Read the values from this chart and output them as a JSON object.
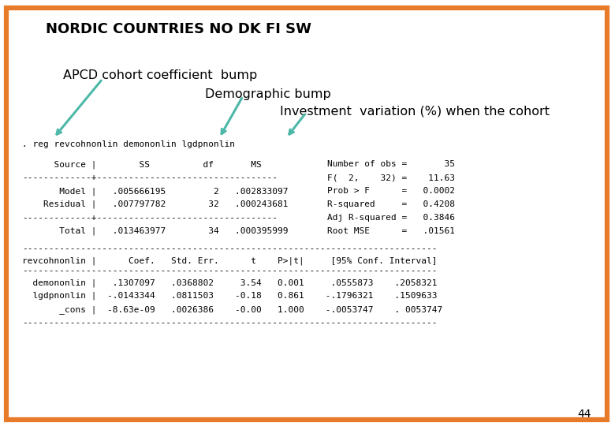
{
  "title": "NORDIC COUNTRIES NO DK FI SW",
  "border_color": "#E87B2A",
  "bg_color": "#FFFFFF",
  "teal_color": "#4DB8A8",
  "annotation1": "APCD cohort coefficient  bump",
  "annotation2": "Demographic bump",
  "annotation3": "Investment  variation (%) when the cohort",
  "cmd_line": ". reg revcohnonlin demononlin lgdpnonlin",
  "stata_output": [
    "      Source |        SS          df       MS",
    "-------------+----------------------------------",
    "       Model |   .005666195         2   .002833097",
    "    Residual |   .007797782        32   .000243681",
    "-------------+----------------------------------",
    "       Total |   .013463977        34   .000395999"
  ],
  "right_stats": [
    "Number of obs =       35",
    "F(  2,    32) =    11.63",
    "Prob > F      =   0.0002",
    "R-squared     =   0.4208",
    "Adj R-squared =   0.3846",
    "Root MSE      =   .01561"
  ],
  "separator_line": "------------------------------------------------------------------------------",
  "header_line": "revcohnonlin |      Coef.   Std. Err.      t    P>|t|     [95% Conf. Interval]",
  "coef_rows": [
    "  demononlin |   .1307097   .0368802     3.54   0.001     .0555873    .2058321",
    "  lgdpnonlin |  -.0143344   .0811503    -0.18   0.861    -.1796321    .1509633",
    "       _cons |  -8.63e-09   .0026386    -0.00   1.000    -.0053747    . 0053747"
  ],
  "page_number": "44",
  "mono_fontsize": 8.0,
  "title_fontsize": 13,
  "annot_fontsize": 11.5
}
